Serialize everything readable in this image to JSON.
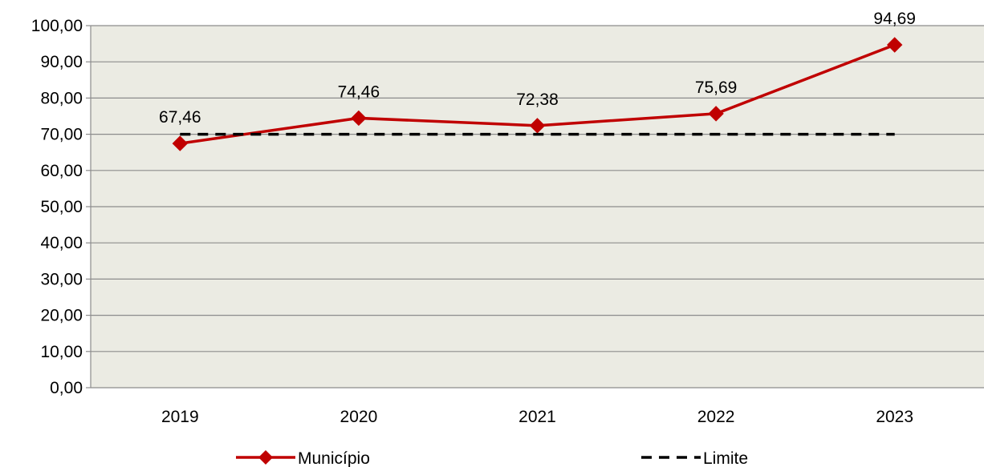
{
  "chart_data": {
    "type": "line",
    "title": "",
    "xlabel": "",
    "ylabel": "",
    "categories": [
      "2019",
      "2020",
      "2021",
      "2022",
      "2023"
    ],
    "ylim": [
      0,
      100
    ],
    "y_ticks": [
      "0,00",
      "10,00",
      "20,00",
      "30,00",
      "40,00",
      "50,00",
      "60,00",
      "70,00",
      "80,00",
      "90,00",
      "100,00"
    ],
    "y_tick_values": [
      0,
      10,
      20,
      30,
      40,
      50,
      60,
      70,
      80,
      90,
      100
    ],
    "grid": true,
    "legend_position": "bottom",
    "series": [
      {
        "name": "Município",
        "values": [
          67.46,
          74.46,
          72.38,
          75.69,
          94.69
        ],
        "data_labels": [
          "67,46",
          "74,46",
          "72,38",
          "75,69",
          "94,69"
        ],
        "color": "#C00000",
        "marker": "diamond",
        "line_style": "solid"
      },
      {
        "name": "Limite",
        "values": [
          70,
          70,
          70,
          70,
          70
        ],
        "color": "#000000",
        "line_style": "dashed"
      }
    ],
    "colors": {
      "plot_background": "#EBEBE3",
      "gridline": "#8C8C8C"
    }
  }
}
